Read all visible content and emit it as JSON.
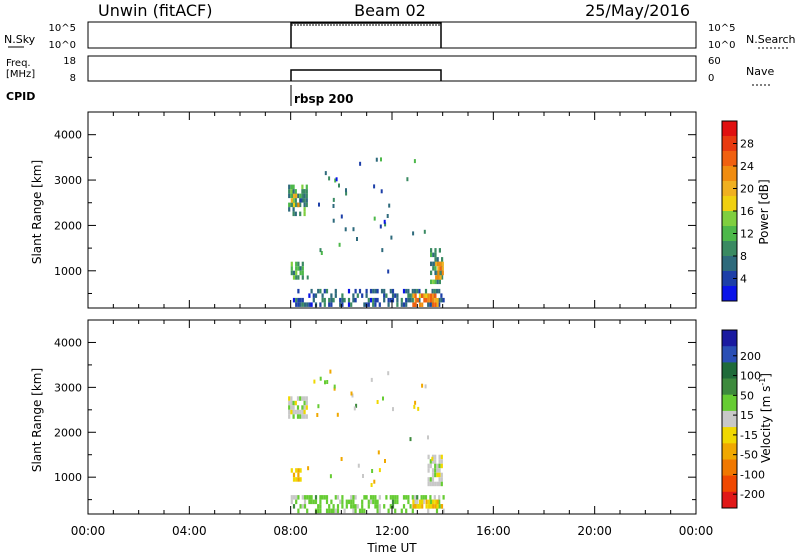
{
  "header": {
    "station": "Unwin (fitACF)",
    "beam": "Beam 02",
    "date": "25/May/2016"
  },
  "status_panels": {
    "nsky_label": "N.Sky",
    "nsky_ticks": [
      "10^5",
      "10^0"
    ],
    "nsky_right_ticks": [
      "10^5",
      "10^0"
    ],
    "nsearch_label": "N.Search",
    "freq_label_1": "Freq.",
    "freq_label_2": "[MHz]",
    "freq_ticks": [
      "18",
      "8"
    ],
    "nave_ticks": [
      "60",
      "0"
    ],
    "nave_label": "Nave",
    "cpid_label": "CPID",
    "cpid_value": "rbsp 200"
  },
  "x_axis": {
    "label": "Time UT",
    "tick_labels": [
      "00:00",
      "04:00",
      "08:00",
      "12:00",
      "16:00",
      "20:00",
      "00:00"
    ],
    "range_hours": [
      0,
      24
    ]
  },
  "chart_data": [
    {
      "type": "heatmap",
      "title": "Power",
      "ylabel": "Slant Range [km]",
      "xlabel": "Time UT",
      "ylim": [
        180,
        4500
      ],
      "xlim_hours": [
        0,
        24
      ],
      "y_ticks": [
        "1000",
        "2000",
        "3000",
        "4000"
      ],
      "colorbar": {
        "label": "Power [dB]",
        "ticks": [
          "4",
          "8",
          "12",
          "16",
          "20",
          "24",
          "28"
        ],
        "range": [
          0,
          32
        ],
        "colors": [
          "#0a14e8",
          "#1d3fa8",
          "#2e6a7c",
          "#3a8a62",
          "#4db84a",
          "#7fcf3f",
          "#f0d010",
          "#f0b020",
          "#f08c10",
          "#f06010",
          "#e83a10",
          "#e01010"
        ]
      },
      "echo_regions": [
        {
          "time_start": 8.0,
          "time_end": 14.0,
          "range_start": 250,
          "range_end": 600,
          "value": 6,
          "note": "near-range ground scatter band"
        },
        {
          "time_start": 12.8,
          "time_end": 13.8,
          "range_start": 300,
          "range_end": 500,
          "value": 22
        },
        {
          "time_start": 7.9,
          "time_end": 8.6,
          "range_start": 2300,
          "range_end": 2900,
          "value": 10
        },
        {
          "time_start": 8.0,
          "time_end": 8.3,
          "range_start": 2450,
          "range_end": 2700,
          "value": 20
        },
        {
          "time_start": 8.0,
          "time_end": 8.5,
          "range_start": 900,
          "range_end": 1200,
          "value": 10
        },
        {
          "time_start": 13.5,
          "time_end": 14.0,
          "range_start": 800,
          "range_end": 1500,
          "value": 10
        },
        {
          "time_start": 13.7,
          "time_end": 14.0,
          "range_start": 900,
          "range_end": 1200,
          "value": 22
        }
      ]
    },
    {
      "type": "heatmap",
      "title": "Velocity",
      "ylabel": "Slant Range [km]",
      "xlabel": "Time UT",
      "ylim": [
        180,
        4500
      ],
      "xlim_hours": [
        0,
        24
      ],
      "y_ticks": [
        "1000",
        "2000",
        "3000",
        "4000"
      ],
      "colorbar": {
        "label": "Velocity [m s^-1]",
        "ticks": [
          "200",
          "100",
          "50",
          "15",
          "-15",
          "-50",
          "-100",
          "-200"
        ],
        "range": [
          -250,
          250
        ],
        "colors": [
          "#1a1aa0",
          "#2a4fb5",
          "#1f6b3a",
          "#3d8a3d",
          "#66cc33",
          "#c8c8c8",
          "#f0d800",
          "#f0a800",
          "#f07800",
          "#f04800",
          "#e01818"
        ]
      },
      "echo_regions": [
        {
          "time_start": 8.0,
          "time_end": 14.0,
          "range_start": 250,
          "range_end": 600,
          "value": 40,
          "note": "near-range mixed green/yellow band"
        },
        {
          "time_start": 12.8,
          "time_end": 14.0,
          "range_start": 300,
          "range_end": 500,
          "value": -60
        },
        {
          "time_start": 7.9,
          "time_end": 8.6,
          "range_start": 2300,
          "range_end": 2800,
          "value": 0
        },
        {
          "time_start": 8.0,
          "time_end": 8.4,
          "range_start": 950,
          "range_end": 1200,
          "value": -60
        },
        {
          "time_start": 13.4,
          "time_end": 14.0,
          "range_start": 800,
          "range_end": 1500,
          "value": 0
        }
      ]
    }
  ]
}
